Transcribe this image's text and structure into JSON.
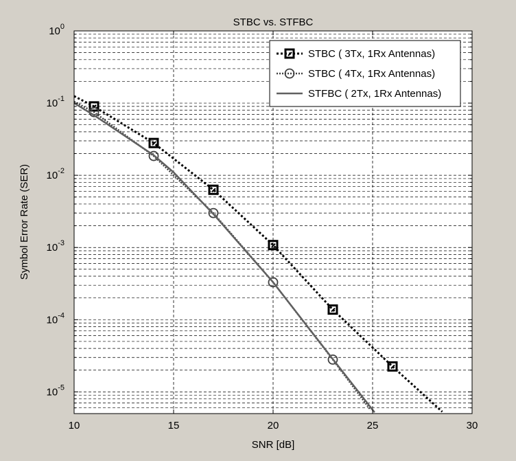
{
  "chart_data": {
    "type": "line",
    "title": "STBC vs. STFBC",
    "xlabel": "SNR [dB]",
    "ylabel": "Symbol Error Rate (SER)",
    "xlim": [
      10,
      30
    ],
    "ylim": [
      5e-06,
      1
    ],
    "yscale": "log",
    "grid": true,
    "legend_position": "top-right",
    "x_ticks": [
      10,
      15,
      20,
      25,
      30
    ],
    "y_ticks": [
      {
        "value": 1,
        "base": "10",
        "exp": "0"
      },
      {
        "value": 0.1,
        "base": "10",
        "exp": "-1"
      },
      {
        "value": 0.01,
        "base": "10",
        "exp": "-2"
      },
      {
        "value": 0.001,
        "base": "10",
        "exp": "-3"
      },
      {
        "value": 0.0001,
        "base": "10",
        "exp": "-4"
      },
      {
        "value": 1e-05,
        "base": "10",
        "exp": "-5"
      }
    ],
    "series": [
      {
        "name": "STBC ( 3Tx, 1Rx Antennas)",
        "color": "#000000",
        "line_style": "dotted",
        "marker": "square",
        "curve": {
          "x": [
            10,
            11,
            14,
            17,
            20,
            23,
            26,
            28.5
          ],
          "y": [
            0.125,
            0.09,
            0.028,
            0.0063,
            0.00108,
            0.000138,
            2.25e-05,
            5.3e-06
          ]
        },
        "markers": {
          "x": [
            11,
            14,
            17,
            20,
            23,
            26
          ],
          "y": [
            0.09,
            0.028,
            0.0063,
            0.00108,
            0.000138,
            2.25e-05
          ]
        }
      },
      {
        "name": "STBC ( 4Tx, 1Rx Antennas)",
        "color": "#404040",
        "line_style": "dotted",
        "marker": "circle",
        "curve": {
          "x": [
            10,
            11,
            14,
            17,
            20,
            23,
            24.9
          ],
          "y": [
            0.105,
            0.075,
            0.0185,
            0.003,
            0.00033,
            2.8e-05,
            5.6e-06
          ]
        },
        "markers": {
          "x": [
            11,
            14,
            17,
            20,
            23
          ],
          "y": [
            0.075,
            0.0185,
            0.003,
            0.00033,
            2.8e-05
          ]
        }
      },
      {
        "name": "STFBC ( 2Tx, 1Rx Antennas)",
        "color": "#606060",
        "line_style": "solid",
        "marker": "none",
        "curve": {
          "x": [
            10,
            11,
            14,
            15,
            17,
            20,
            23,
            25.1
          ],
          "y": [
            0.1,
            0.068,
            0.019,
            0.011,
            0.0029,
            0.00033,
            2.85e-05,
            5.2e-06
          ]
        },
        "markers": {
          "x": [],
          "y": []
        }
      }
    ]
  }
}
